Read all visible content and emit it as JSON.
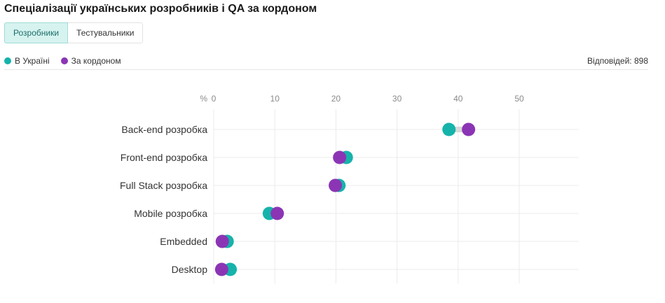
{
  "title": "Спеціалізації українських розробників і QA за кордоном",
  "tabs": [
    {
      "label": "Розробники",
      "active": true
    },
    {
      "label": "Тестувальники",
      "active": false
    }
  ],
  "legend": {
    "ukraine": {
      "label": "В Україні",
      "color": "#16b3aa"
    },
    "abroad": {
      "label": "За кордоном",
      "color": "#8b35b5"
    }
  },
  "responses_label": "Відповідей: 898",
  "chart_data": {
    "type": "dot-plot",
    "unit_label": "%",
    "x_ticks": [
      0,
      10,
      20,
      30,
      40,
      50
    ],
    "xlim": [
      0,
      60
    ],
    "grid": true,
    "categories": [
      "Back-end розробка",
      "Front-end розробка",
      "Full Stack розробка",
      "Mobile розробка",
      "Embedded",
      "Desktop"
    ],
    "series": [
      {
        "name": "В Україні",
        "color": "#16b3aa",
        "values": [
          38.5,
          21.7,
          20.5,
          9.1,
          2.2,
          2.7
        ]
      },
      {
        "name": "За кордоном",
        "color": "#8b35b5",
        "values": [
          41.7,
          20.6,
          19.9,
          10.4,
          1.4,
          1.3
        ]
      }
    ]
  }
}
